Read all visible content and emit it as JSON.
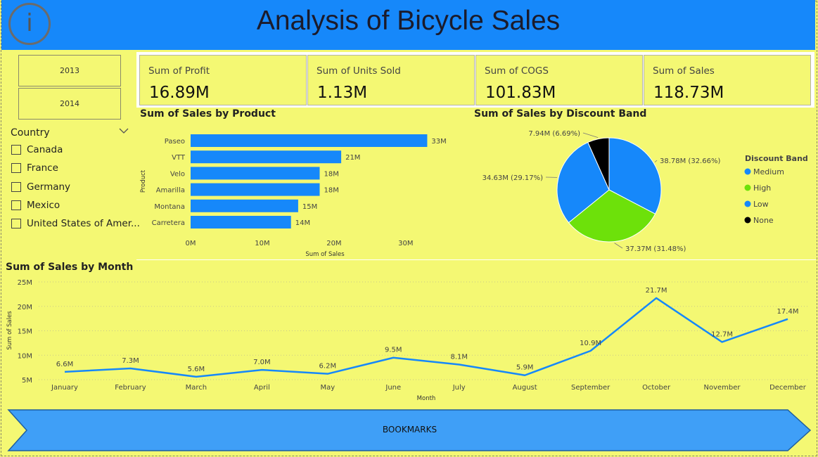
{
  "header": {
    "title": "Analysis of Bicycle Sales",
    "info_glyph": "i",
    "info_icon": "info-icon"
  },
  "slicers": {
    "years": [
      "2013",
      "2014"
    ],
    "country": {
      "label": "Country",
      "items": [
        "Canada",
        "France",
        "Germany",
        "Mexico",
        "United States of Amer..."
      ]
    }
  },
  "kpis": [
    {
      "title": "Sum of Profit",
      "value": "16.89M"
    },
    {
      "title": "Sum of Units Sold",
      "value": "1.13M"
    },
    {
      "title": "Sum of COGS",
      "value": "101.83M"
    },
    {
      "title": "Sum of Sales",
      "value": "118.73M"
    }
  ],
  "colors": {
    "bar": "#1688fa",
    "line": "#1688fa",
    "medium": "#1688fa",
    "high": "#6de10a",
    "low": "#1688fa",
    "none": "#000000"
  },
  "chart_data": [
    {
      "type": "bar",
      "orientation": "horizontal",
      "title": "Sum of Sales by Product",
      "xlabel": "Sum of Sales",
      "ylabel": "Product",
      "categories": [
        "Paseo",
        "VTT",
        "Velo",
        "Amarilla",
        "Montana",
        "Carretera"
      ],
      "values": [
        33,
        21,
        18,
        18,
        15,
        14
      ],
      "data_labels": [
        "33M",
        "21M",
        "18M",
        "18M",
        "15M",
        "14M"
      ],
      "xlim": [
        0,
        36
      ],
      "xticks": [
        0,
        10,
        20,
        30
      ],
      "xtick_labels": [
        "0M",
        "10M",
        "20M",
        "30M"
      ]
    },
    {
      "type": "pie",
      "title": "Sum of Sales by Discount Band",
      "legend_title": "Discount Band",
      "legend_position": "right",
      "slices": [
        {
          "name": "Medium",
          "value": 38.78,
          "label": "38.78M (32.66%)"
        },
        {
          "name": "High",
          "value": 37.37,
          "label": "37.37M (31.48%)"
        },
        {
          "name": "Low",
          "value": 34.63,
          "label": "34.63M (29.17%)"
        },
        {
          "name": "None",
          "value": 7.94,
          "label": "7.94M (6.69%)"
        }
      ]
    },
    {
      "type": "line",
      "title": "Sum of Sales by Month",
      "xlabel": "Month",
      "ylabel": "Sum of Sales",
      "categories": [
        "January",
        "February",
        "March",
        "April",
        "May",
        "June",
        "July",
        "August",
        "September",
        "October",
        "November",
        "December"
      ],
      "values": [
        6.6,
        7.3,
        5.6,
        7.0,
        6.2,
        9.5,
        8.1,
        5.9,
        10.9,
        21.7,
        12.7,
        17.4
      ],
      "data_labels": [
        "6.6M",
        "7.3M",
        "5.6M",
        "7.0M",
        "6.2M",
        "9.5M",
        "8.1M",
        "5.9M",
        "10.9M",
        "21.7M",
        "12.7M",
        "17.4M"
      ],
      "ylim": [
        5,
        25
      ],
      "yticks": [
        5,
        10,
        15,
        20,
        25
      ],
      "ytick_labels": [
        "5M",
        "10M",
        "15M",
        "20M",
        "25M"
      ],
      "grid": true
    }
  ],
  "bookmarks": {
    "label": "BOOKMARKS"
  }
}
